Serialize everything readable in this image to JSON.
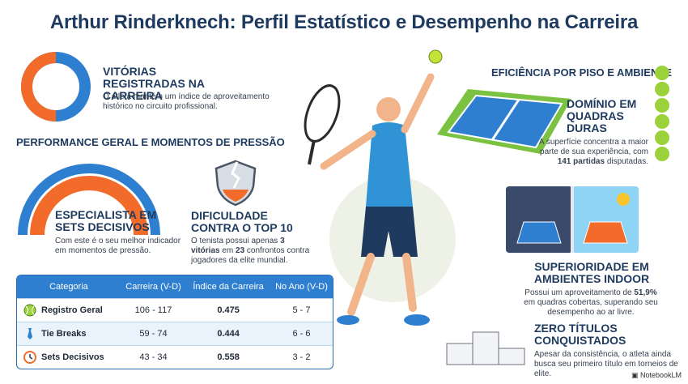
{
  "title": "Arthur Rinderknech: Perfil Estatístico e Desempenho na Carreira",
  "victories": {
    "heading": "VITÓRIAS REGISTRADAS NA CARREIRA",
    "text": "O atleta mantém um índice de aproveitamento histórico no circuito profissional."
  },
  "performance_section": "PERFORMANCE GERAL E MOMENTOS DE PRESSÃO",
  "decisive_sets": {
    "heading": "ESPECIALISTA EM SETS DECISIVOS",
    "text": "Com este é o seu melhor indicador em momentos de pressão."
  },
  "top10": {
    "heading": "DIFICULDADE CONTRA O TOP 10",
    "text_pre": "O tenista possui apenas ",
    "wins": "3 vitórias",
    "text_mid": " em ",
    "matches": "23",
    "text_post": " confrontos contra jogadores da elite mundial."
  },
  "surface_section": "EFICIÊNCIA POR PISO E AMBIENTE",
  "hard_courts": {
    "heading": "DOMÍNIO EM QUADRAS DURAS",
    "text_pre": "A superfície concentra a maior parte de sua experiência, com ",
    "highlight": "141 partidas",
    "text_post": " disputadas."
  },
  "indoor": {
    "heading": "SUPERIORIDADE EM AMBIENTES INDOOR",
    "text_pre": "Possui um aproveitamento de ",
    "highlight": "51,9%",
    "text_post": " em quadras cobertas, superando seu desempenho ao ar livre."
  },
  "titles": {
    "heading": "ZERO TÍTULOS CONQUISTADOS",
    "text": "Apesar da consistência, o atleta ainda busca seu primeiro título em torneios de elite."
  },
  "table": {
    "headers": [
      "Categoria",
      "Carreira (V-D)",
      "Índice da Carreira",
      "No Ano (V-D)"
    ],
    "rows": [
      {
        "category": "Registro Geral",
        "career": "106 - 117",
        "index": "0.475",
        "year": "5 - 7",
        "icon": "tennis-ball-icon"
      },
      {
        "category": "Tie Breaks",
        "career": "59 - 74",
        "index": "0.444",
        "year": "6 - 6",
        "icon": "necktie-icon"
      },
      {
        "category": "Sets Decisivos",
        "career": "43 - 34",
        "index": "0.558",
        "year": "3 - 2",
        "icon": "clock-icon"
      }
    ]
  },
  "brand": "NotebookLM",
  "colors": {
    "navy": "#1e3a5f",
    "blue": "#2f7fd1",
    "orange": "#f26b2a",
    "green": "#7cc242"
  }
}
